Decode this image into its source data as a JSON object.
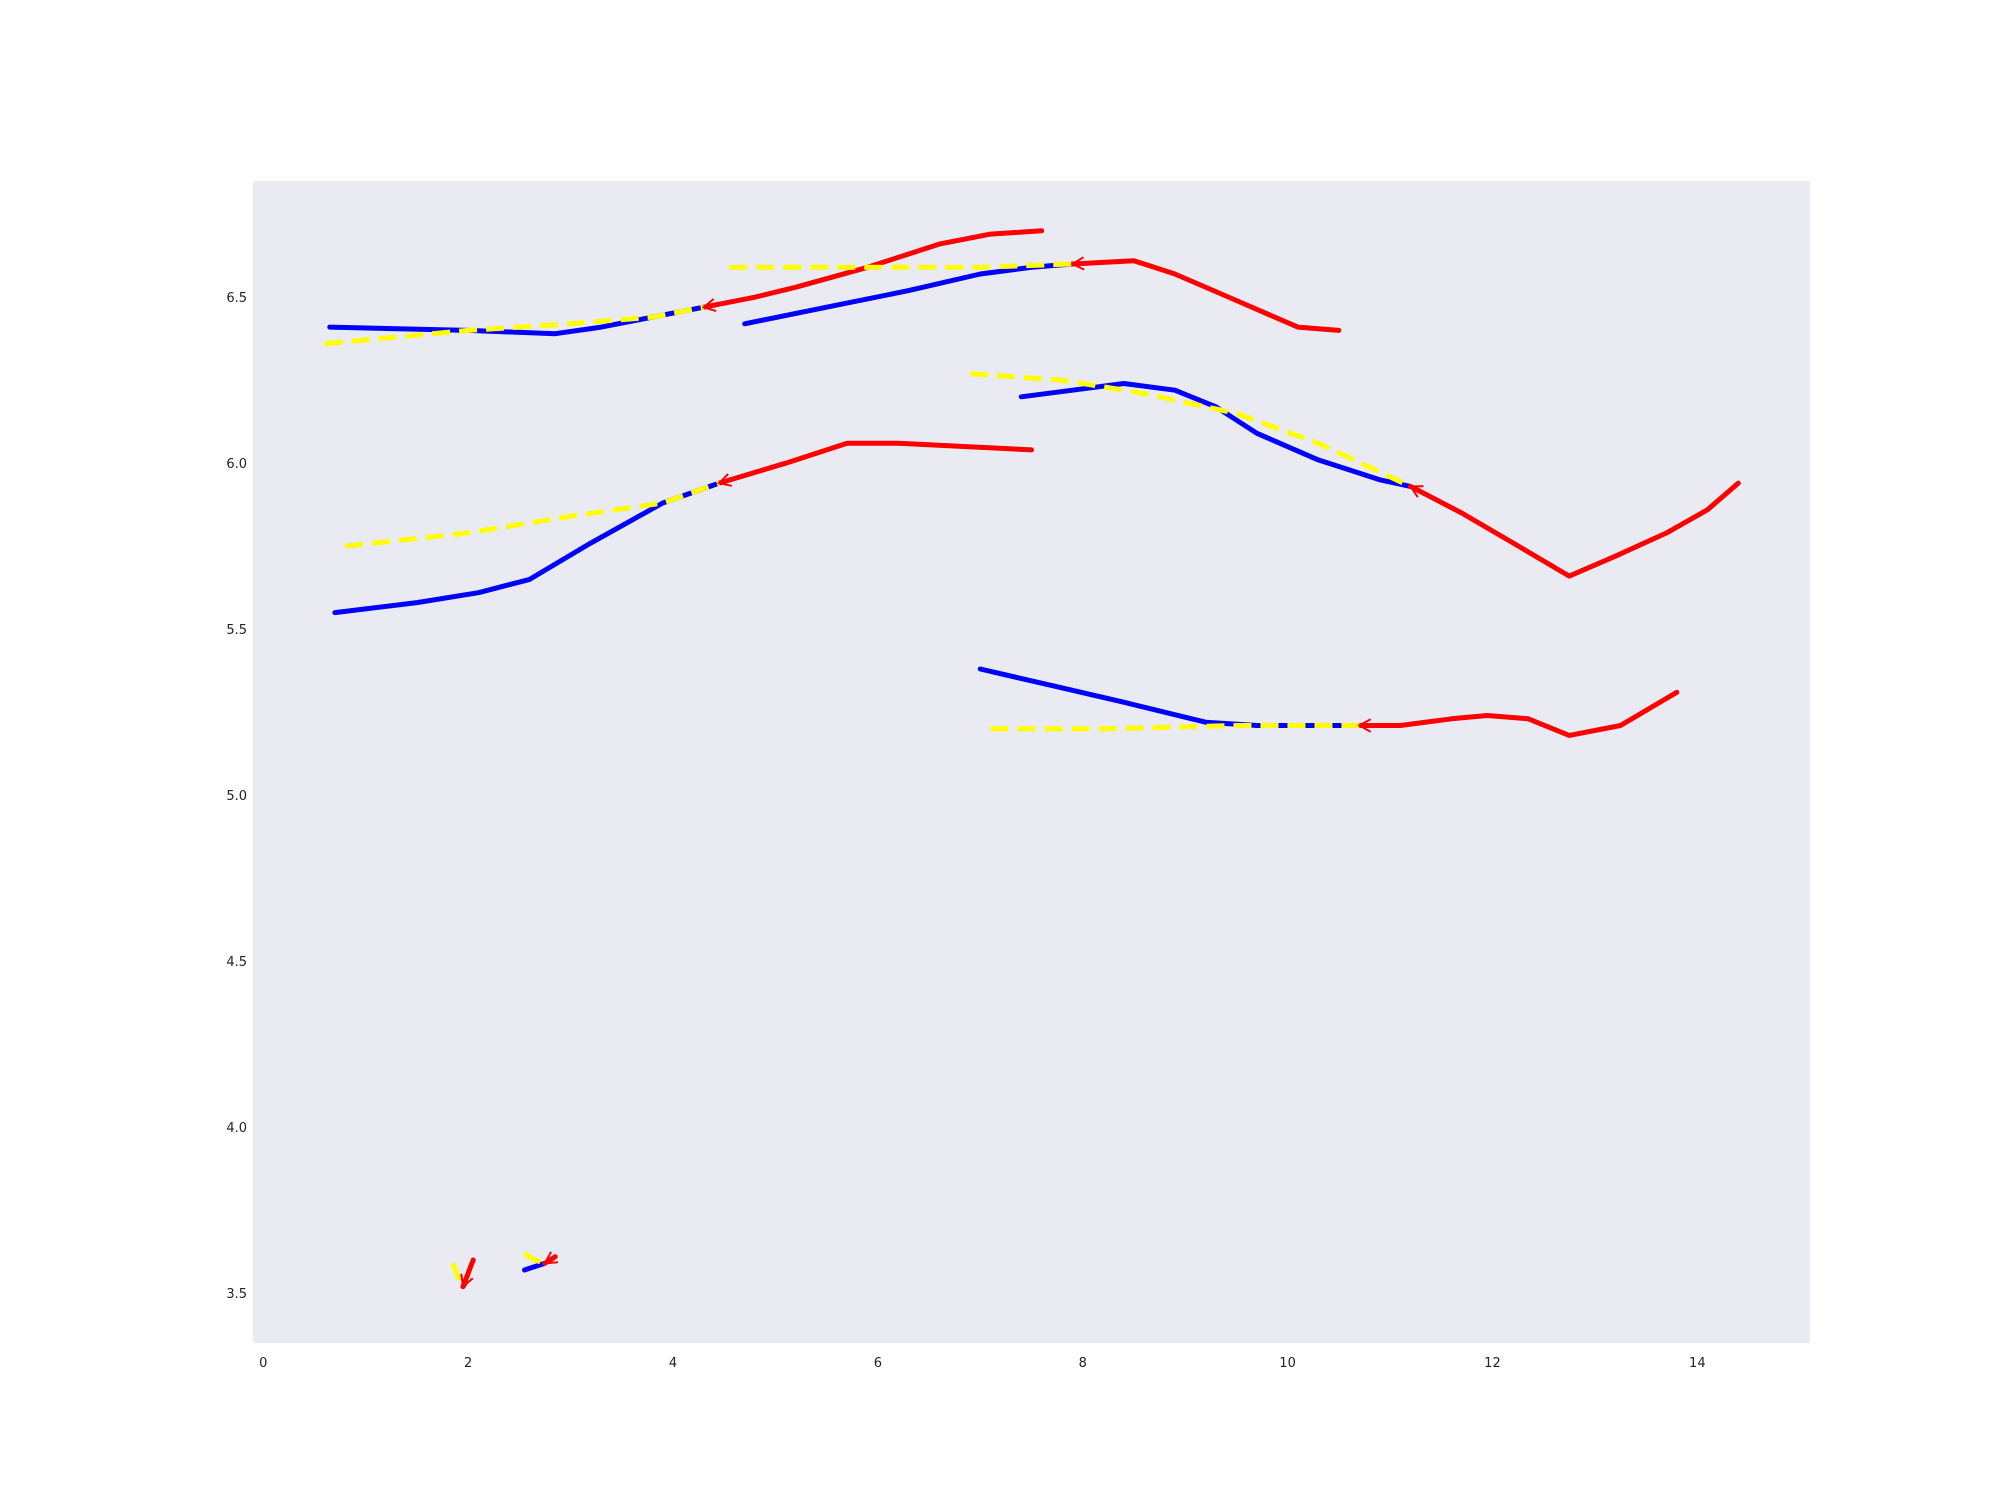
{
  "chart_data": {
    "type": "line",
    "title": "",
    "xlabel": "",
    "ylabel": "",
    "xlim": [
      -0.1,
      15.1
    ],
    "ylim": [
      3.35,
      6.85
    ],
    "grid": false,
    "background": "#EAEAF2",
    "x_ticks": [
      "0",
      "2",
      "4",
      "6",
      "8",
      "10",
      "12",
      "14"
    ],
    "y_ticks": [
      "3.5",
      "4.0",
      "4.5",
      "5.0",
      "5.5",
      "6.0",
      "6.5"
    ],
    "colors": {
      "history": "#0000FF",
      "future": "#FF0000",
      "prediction": "#FFFF00"
    },
    "trajectories": [
      {
        "history": [
          [
            0.65,
            6.41
          ],
          [
            2.0,
            6.4
          ],
          [
            2.85,
            6.39
          ],
          [
            3.3,
            6.41
          ],
          [
            3.8,
            6.44
          ],
          [
            4.3,
            6.47
          ]
        ],
        "future": [
          [
            4.3,
            6.47
          ],
          [
            4.8,
            6.5
          ],
          [
            5.2,
            6.53
          ],
          [
            5.9,
            6.59
          ],
          [
            6.6,
            6.66
          ],
          [
            7.1,
            6.69
          ],
          [
            7.6,
            6.7
          ]
        ],
        "prediction": [
          [
            0.6,
            6.36
          ],
          [
            2.0,
            6.4
          ],
          [
            3.0,
            6.42
          ],
          [
            3.8,
            6.44
          ],
          [
            4.3,
            6.47
          ]
        ]
      },
      {
        "history": [
          [
            4.7,
            6.42
          ],
          [
            5.5,
            6.47
          ],
          [
            6.3,
            6.52
          ],
          [
            7.0,
            6.57
          ],
          [
            7.5,
            6.59
          ],
          [
            7.9,
            6.6
          ]
        ],
        "future": [
          [
            7.9,
            6.6
          ],
          [
            8.5,
            6.61
          ],
          [
            8.9,
            6.57
          ],
          [
            9.5,
            6.49
          ],
          [
            10.1,
            6.41
          ],
          [
            10.5,
            6.4
          ]
        ],
        "prediction": [
          [
            4.55,
            6.59
          ],
          [
            6.0,
            6.59
          ],
          [
            7.0,
            6.59
          ],
          [
            7.9,
            6.6
          ]
        ]
      },
      {
        "history": [
          [
            0.7,
            5.55
          ],
          [
            1.5,
            5.58
          ],
          [
            2.1,
            5.61
          ],
          [
            2.6,
            5.65
          ],
          [
            3.2,
            5.76
          ],
          [
            3.9,
            5.88
          ],
          [
            4.45,
            5.94
          ]
        ],
        "future": [
          [
            4.45,
            5.94
          ],
          [
            5.1,
            6.0
          ],
          [
            5.7,
            6.06
          ],
          [
            6.2,
            6.06
          ],
          [
            7.5,
            6.04
          ]
        ],
        "prediction": [
          [
            0.8,
            5.75
          ],
          [
            2.0,
            5.79
          ],
          [
            3.0,
            5.84
          ],
          [
            3.9,
            5.88
          ],
          [
            4.45,
            5.94
          ]
        ]
      },
      {
        "history": [
          [
            7.4,
            6.2
          ],
          [
            7.9,
            6.22
          ],
          [
            8.4,
            6.24
          ],
          [
            8.9,
            6.22
          ],
          [
            9.3,
            6.17
          ],
          [
            9.7,
            6.09
          ],
          [
            10.3,
            6.01
          ],
          [
            10.9,
            5.95
          ],
          [
            11.2,
            5.93
          ]
        ],
        "future": [
          [
            11.2,
            5.93
          ],
          [
            11.7,
            5.85
          ],
          [
            12.2,
            5.76
          ],
          [
            12.75,
            5.66
          ],
          [
            13.2,
            5.72
          ],
          [
            13.7,
            5.79
          ],
          [
            14.1,
            5.86
          ],
          [
            14.4,
            5.94
          ]
        ],
        "prediction": [
          [
            6.9,
            6.27
          ],
          [
            7.8,
            6.25
          ],
          [
            8.6,
            6.21
          ],
          [
            9.5,
            6.15
          ],
          [
            10.3,
            6.06
          ],
          [
            11.2,
            5.93
          ]
        ]
      },
      {
        "history": [
          [
            7.0,
            5.38
          ],
          [
            7.7,
            5.33
          ],
          [
            8.4,
            5.28
          ],
          [
            9.2,
            5.22
          ],
          [
            9.7,
            5.21
          ],
          [
            10.7,
            5.21
          ]
        ],
        "future": [
          [
            10.7,
            5.21
          ],
          [
            11.1,
            5.21
          ],
          [
            11.6,
            5.23
          ],
          [
            11.95,
            5.24
          ],
          [
            12.35,
            5.23
          ],
          [
            12.75,
            5.18
          ],
          [
            13.25,
            5.21
          ],
          [
            13.8,
            5.31
          ]
        ],
        "prediction": [
          [
            7.1,
            5.2
          ],
          [
            8.2,
            5.2
          ],
          [
            9.5,
            5.21
          ],
          [
            10.7,
            5.21
          ]
        ]
      },
      {
        "history": [
          [
            1.95,
            3.52
          ],
          [
            1.97,
            3.53
          ]
        ],
        "future": [
          [
            1.95,
            3.52
          ],
          [
            2.0,
            3.56
          ],
          [
            2.05,
            3.6
          ]
        ],
        "prediction": [
          [
            1.85,
            3.59
          ],
          [
            1.9,
            3.55
          ],
          [
            1.95,
            3.52
          ]
        ]
      },
      {
        "history": [
          [
            2.55,
            3.57
          ],
          [
            2.65,
            3.58
          ],
          [
            2.75,
            3.59
          ]
        ],
        "future": [
          [
            2.75,
            3.59
          ],
          [
            2.8,
            3.6
          ],
          [
            2.85,
            3.61
          ]
        ],
        "prediction": [
          [
            2.55,
            3.62
          ],
          [
            2.65,
            3.6
          ],
          [
            2.75,
            3.59
          ]
        ]
      }
    ]
  }
}
